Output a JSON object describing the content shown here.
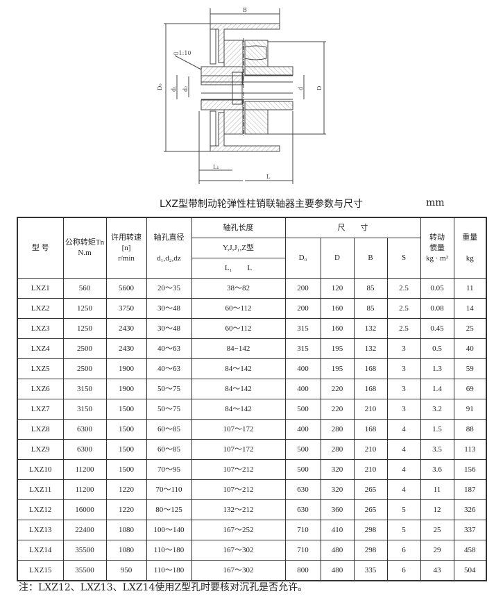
{
  "drawing": {
    "labels": {
      "B": "B",
      "D0": "D₀",
      "D": "D",
      "d1": "d₁",
      "dz": "d₂",
      "d": "d",
      "L1": "L₁",
      "L": "L",
      "taper": "▭1:10"
    }
  },
  "title": "LXZ型带制动轮弹性柱销联轴器主要参数与尺寸",
  "unit": "mm",
  "table": {
    "headers": {
      "model": "型 号",
      "torque": "公称转矩Tn",
      "torque_unit": "N.m",
      "speed": "许用转速",
      "speed_sym": "[n]",
      "speed_unit": "r/min",
      "bore_dia": "轴孔直径",
      "bore_dia_sym": "d₁,d₂,dz",
      "bore_len": "轴孔长度",
      "bore_types": "Y,J,J₁,Z型",
      "L1": "L₁",
      "L": "L",
      "dims": "尺　　寸",
      "D0": "D₀",
      "D": "D",
      "B": "B",
      "S": "S",
      "inertia": "转动",
      "inertia2": "惯量",
      "inertia_unit": "kg · m²",
      "weight": "重量",
      "weight_unit": "kg"
    },
    "rows": [
      [
        "LXZ1",
        "560",
        "5600",
        "20～35",
        "38～82",
        "200",
        "120",
        "85",
        "2.5",
        "0.05",
        "11"
      ],
      [
        "LXZ2",
        "1250",
        "3750",
        "30～48",
        "60～112",
        "200",
        "160",
        "85",
        "2.5",
        "0.08",
        "14"
      ],
      [
        "LXZ3",
        "1250",
        "2430",
        "30～48",
        "60～112",
        "315",
        "160",
        "132",
        "2.5",
        "0.45",
        "25"
      ],
      [
        "LXZ4",
        "2500",
        "2430",
        "40～63",
        "84−142",
        "315",
        "195",
        "132",
        "3",
        "0.5",
        "40"
      ],
      [
        "LXZ5",
        "2500",
        "1900",
        "40～63",
        "84～142",
        "400",
        "195",
        "168",
        "3",
        "1.3",
        "59"
      ],
      [
        "LXZ6",
        "3150",
        "1900",
        "50～75",
        "84～142",
        "400",
        "220",
        "168",
        "3",
        "1.4",
        "69"
      ],
      [
        "LXZ7",
        "3150",
        "1500",
        "50～75",
        "84～142",
        "500",
        "220",
        "210",
        "3",
        "3.2",
        "91"
      ],
      [
        "LXZ8",
        "6300",
        "1500",
        "60～85",
        "107～172",
        "400",
        "280",
        "168",
        "4",
        "1.5",
        "88"
      ],
      [
        "LXZ9",
        "6300",
        "1500",
        "60～85",
        "107～172",
        "500",
        "280",
        "210",
        "4",
        "3.5",
        "113"
      ],
      [
        "LXZ10",
        "11200",
        "1500",
        "70～95",
        "107～212",
        "500",
        "320",
        "210",
        "4",
        "3.6",
        "156"
      ],
      [
        "LXZ11",
        "11200",
        "1220",
        "70～110",
        "107～212",
        "630",
        "320",
        "265",
        "4",
        "11",
        "187"
      ],
      [
        "LXZ12",
        "16000",
        "1220",
        "80～125",
        "132～212",
        "630",
        "360",
        "265",
        "5",
        "12",
        "326"
      ],
      [
        "LXZ13",
        "22400",
        "1080",
        "100～140",
        "167～252",
        "710",
        "410",
        "298",
        "5",
        "25",
        "337"
      ],
      [
        "LXZ14",
        "35500",
        "1080",
        "110～180",
        "167～302",
        "710",
        "480",
        "298",
        "6",
        "29",
        "458"
      ],
      [
        "LXZ15",
        "35500",
        "950",
        "110～180",
        "167～302",
        "800",
        "480",
        "335",
        "6",
        "43",
        "504"
      ]
    ]
  },
  "note": "注：LXZ12、LXZ13、LXZ14使用Z型孔时要核对沉孔是否允许。"
}
